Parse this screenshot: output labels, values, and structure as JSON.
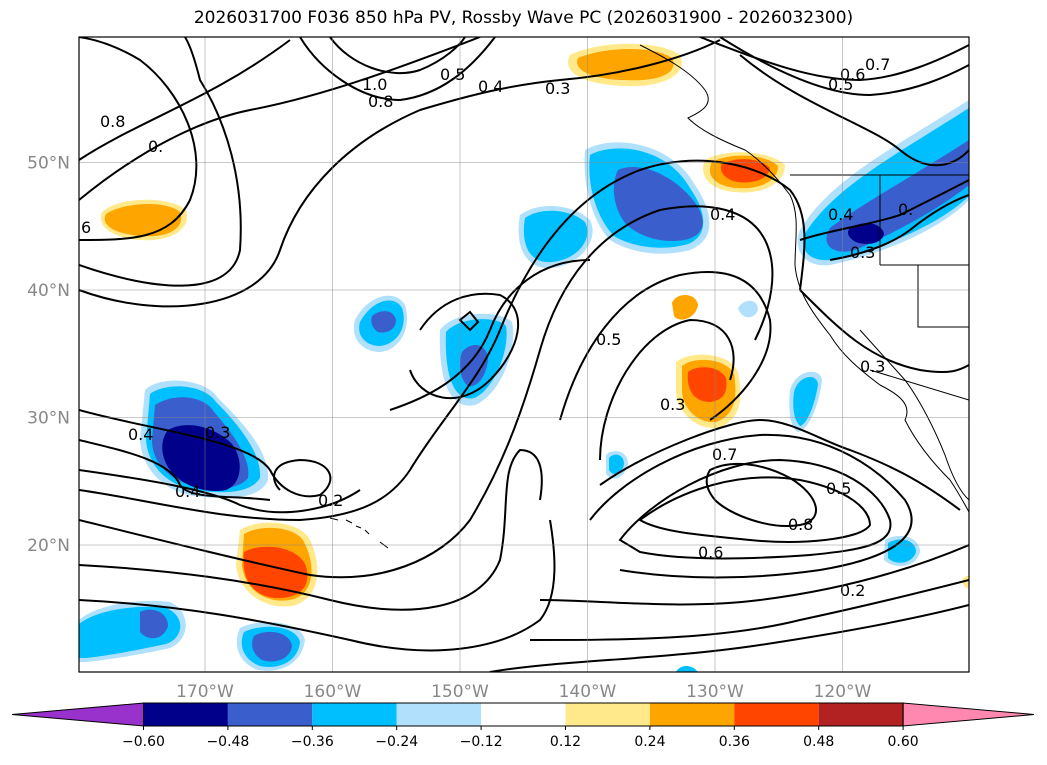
{
  "title": "2026031700 F036 850 hPa PV, Rossby Wave PC (2026031900 - 2026032300)",
  "lat_labels": [
    {
      "value": 50,
      "label": "50°N"
    },
    {
      "value": 40,
      "label": "40°N"
    },
    {
      "value": 30,
      "label": "30°N"
    },
    {
      "value": 20,
      "label": "20°N"
    }
  ],
  "lon_labels": [
    {
      "value": -170,
      "label": "170°W"
    },
    {
      "value": -160,
      "label": "160°W"
    },
    {
      "value": -150,
      "label": "150°W"
    },
    {
      "value": -140,
      "label": "140°W"
    },
    {
      "value": -130,
      "label": "130°W"
    },
    {
      "value": -120,
      "label": "120°W"
    }
  ],
  "contour_labels": [
    "0.8",
    "0.",
    "0.4",
    "1.0",
    "0.8",
    "0.5",
    "0.4",
    "0.3",
    "0.7",
    "0.6",
    "0.5",
    "0.4",
    "0.4",
    "0.",
    "0.3",
    "0.5",
    "0.3",
    "0.3",
    "0.4",
    "0.3",
    "0.2",
    "0.7",
    "0.5",
    "0.8",
    "0.6",
    "0.2",
    "6"
  ],
  "colorbar": {
    "colors": [
      "#9932cc",
      "#00008b",
      "#3a5fcd",
      "#00bfff",
      "#b0e0fb",
      "#ffffff",
      "#ffe98a",
      "#ffa500",
      "#ff4500",
      "#b22222",
      "#ff88b0"
    ],
    "tick_labels": [
      "−0.60",
      "−0.48",
      "−0.36",
      "−0.24",
      "−0.12",
      "0.12",
      "0.24",
      "0.36",
      "0.48",
      "0.60"
    ]
  }
}
